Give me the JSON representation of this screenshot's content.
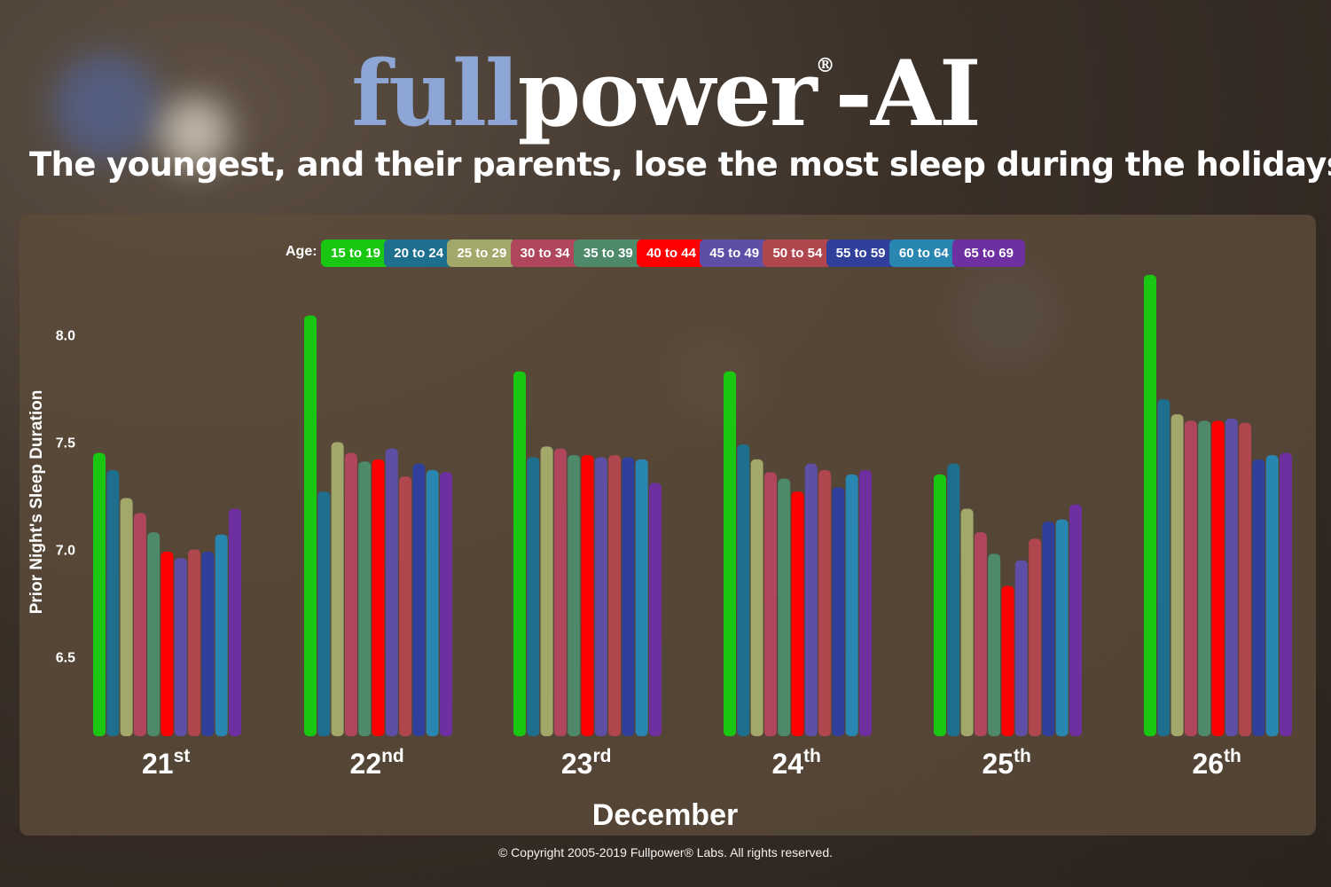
{
  "brand": {
    "part1": "full",
    "part2": "power",
    "registered": "®",
    "part3": "-AI"
  },
  "headline": "The youngest, and their parents, lose the most sleep during the holidays.",
  "footer": "© Copyright 2005-2019 Fullpower® Labs. All rights reserved.",
  "colors": {
    "logo_light": "#8ea6d6",
    "panel": "#5c4c3a",
    "text": "#ffffff"
  },
  "chart_data": {
    "type": "bar",
    "title": "",
    "xlabel": "December",
    "ylabel": "Prior Night's Sleep Duration",
    "legend_title": "Age:",
    "legend_position": "top",
    "grid": false,
    "ylim": [
      6.13,
      8.3
    ],
    "yticks": [
      6.5,
      7.0,
      7.5,
      8.0
    ],
    "ytick_labels": [
      "6.5",
      "7.0",
      "7.5",
      "8.0"
    ],
    "categories": [
      {
        "base": "21",
        "suffix": "st"
      },
      {
        "base": "22",
        "suffix": "nd"
      },
      {
        "base": "23",
        "suffix": "rd"
      },
      {
        "base": "24",
        "suffix": "th"
      },
      {
        "base": "25",
        "suffix": "th"
      },
      {
        "base": "26",
        "suffix": "th"
      }
    ],
    "series": [
      {
        "name": "15 to 19",
        "color": "#19c712",
        "values": [
          7.45,
          8.09,
          7.83,
          7.83,
          7.35,
          8.28
        ]
      },
      {
        "name": "20 to 24",
        "color": "#1e6e8e",
        "values": [
          7.37,
          7.27,
          7.43,
          7.49,
          7.4,
          7.7
        ]
      },
      {
        "name": "25 to 29",
        "color": "#a2a86a",
        "values": [
          7.24,
          7.5,
          7.48,
          7.42,
          7.19,
          7.63
        ]
      },
      {
        "name": "30 to 34",
        "color": "#b0465c",
        "values": [
          7.17,
          7.45,
          7.47,
          7.36,
          7.08,
          7.6
        ]
      },
      {
        "name": "35 to 39",
        "color": "#4e8a6a",
        "values": [
          7.08,
          7.41,
          7.44,
          7.33,
          6.98,
          7.6
        ]
      },
      {
        "name": "40 to 44",
        "color": "#ff0000",
        "values": [
          6.99,
          7.42,
          7.44,
          7.27,
          6.83,
          7.6
        ]
      },
      {
        "name": "45 to 49",
        "color": "#5e4ea6",
        "values": [
          6.96,
          7.47,
          7.43,
          7.4,
          6.95,
          7.61
        ]
      },
      {
        "name": "50 to 54",
        "color": "#b0474f",
        "values": [
          7.0,
          7.34,
          7.44,
          7.37,
          7.05,
          7.59
        ]
      },
      {
        "name": "55 to 59",
        "color": "#2f3f9a",
        "values": [
          6.99,
          7.4,
          7.43,
          7.29,
          7.13,
          7.42
        ]
      },
      {
        "name": "60 to 64",
        "color": "#2886b0",
        "values": [
          7.07,
          7.37,
          7.42,
          7.35,
          7.14,
          7.44
        ]
      },
      {
        "name": "65 to 69",
        "color": "#6e2fa0",
        "values": [
          7.19,
          7.36,
          7.31,
          7.37,
          7.21,
          7.45
        ]
      }
    ]
  }
}
